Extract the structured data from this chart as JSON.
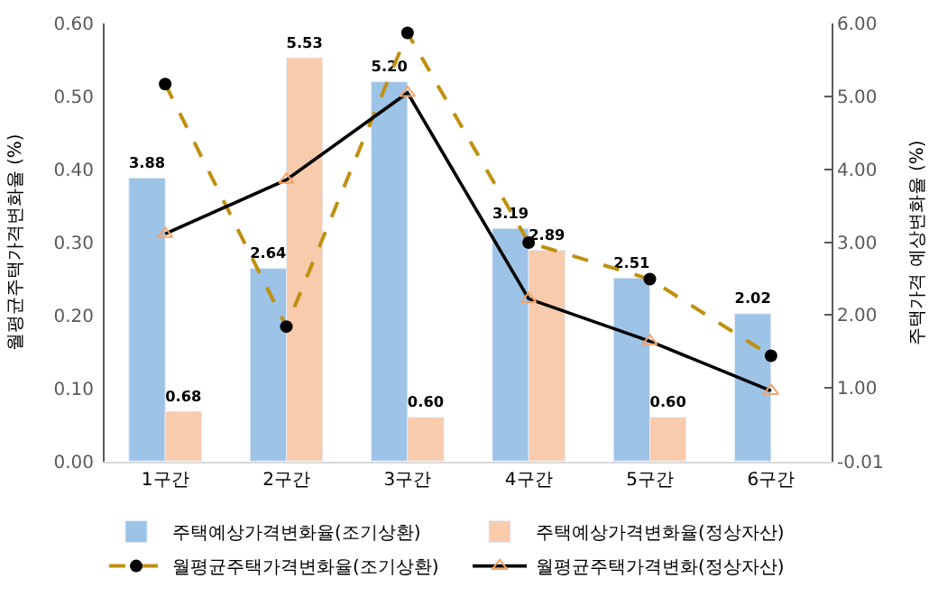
{
  "chart_data": {
    "type": "bar",
    "ylabel": "월평균주택가격변화율 (%)",
    "y2label": "주택가격 예상변화율 (%)",
    "categories": [
      "1구간",
      "2구간",
      "3구간",
      "4구간",
      "5구간",
      "6구간"
    ],
    "series": [
      {
        "name": "주택예상가격변화율(조기상환)",
        "color": "#9dc3e6",
        "values": [
          3.88,
          2.64,
          5.2,
          3.19,
          2.51,
          2.02
        ],
        "value_labels": [
          "3.88",
          "2.64",
          "5.20",
          "3.19",
          "2.51",
          "2.02"
        ],
        "axis": "y2"
      },
      {
        "name": "주택예상가격변화율(정상자산)",
        "color": "#f8cbad",
        "values": [
          0.68,
          5.53,
          0.6,
          2.89,
          0.6,
          null
        ],
        "value_labels": [
          "0.68",
          "5.53",
          "0.60",
          "2.89",
          "0.60",
          null
        ],
        "axis": "y2"
      },
      {
        "name": "월평균주택가격변화율(조기상환)",
        "type": "line",
        "color": "#c09010",
        "values": [
          0.517,
          0.185,
          0.587,
          0.3,
          0.25,
          0.145
        ],
        "marker": "circle",
        "line_style": "dashed"
      },
      {
        "name": "월평균주택가격변화(정상자산)",
        "type": "line",
        "color": "#000000",
        "values": [
          0.312,
          0.386,
          0.505,
          0.223,
          0.165,
          0.097
        ],
        "marker": "triangle",
        "line_style": "solid"
      }
    ],
    "ylim": [
      0,
      0.6
    ],
    "yticks": [
      {
        "value": 0,
        "label": "0.00"
      },
      {
        "value": 0.1,
        "label": "0.10"
      },
      {
        "value": 0.2,
        "label": "0.20"
      },
      {
        "value": 0.3,
        "label": "0.30"
      },
      {
        "value": 0.4,
        "label": "0.40"
      },
      {
        "value": 0.5,
        "label": "0.50"
      },
      {
        "value": 0.6,
        "label": "0.60"
      }
    ],
    "y2lim": [
      -0.01,
      6.0
    ],
    "y2ticks": [
      -0.01,
      {
        "value": 1,
        "label": "1.00"
      },
      {
        "value": 2,
        "label": "2.00"
      },
      {
        "value": 3,
        "label": "3.00"
      },
      {
        "value": 4,
        "label": "4.00"
      },
      {
        "value": 5,
        "label": "5.00"
      },
      {
        "value": 6,
        "label": "6.00"
      }
    ],
    "legend": "bottom"
  }
}
